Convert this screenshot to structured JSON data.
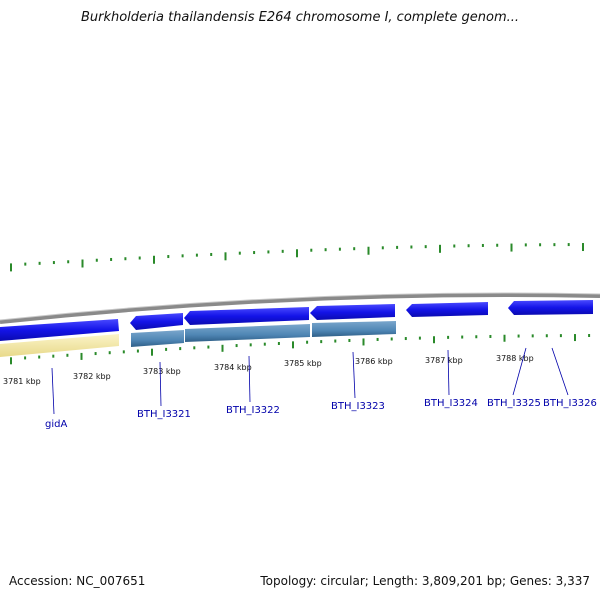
{
  "title": "Burkholderia thailandensis E264 chromosome I, complete genom...",
  "footer": {
    "accession": "Accession: NC_007651",
    "summary": "Topology: circular; Length: 3,809,201 bp; Genes: 3,337"
  },
  "colors": {
    "backbone": "#8a8a8a",
    "gene": "#1515e6",
    "cds": "#4f86b4",
    "rna": "#f3e8a6",
    "tick": "#2a8a2a",
    "label": "#0000aa"
  },
  "scale_labels": [
    "3781 kbp",
    "3782 kbp",
    "3783 kbp",
    "3784 kbp",
    "3785 kbp",
    "3786 kbp",
    "3787 kbp",
    "3788 kbp"
  ],
  "genes": [
    {
      "label": "gidA",
      "feature": "gene"
    },
    {
      "label": "BTH_I3321",
      "feature": "gene"
    },
    {
      "label": "BTH_I3322",
      "feature": "gene"
    },
    {
      "label": "BTH_I3323",
      "feature": "gene"
    },
    {
      "label": "BTH_I3324",
      "feature": "gene"
    },
    {
      "label": "BTH_I3325",
      "feature": "gene"
    },
    {
      "label": "BTH_I3326",
      "feature": "gene"
    }
  ]
}
